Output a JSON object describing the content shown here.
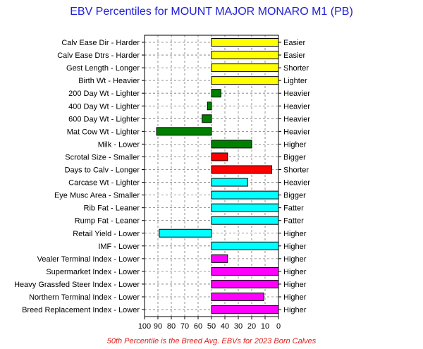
{
  "chart_data": {
    "type": "bar",
    "orientation": "horizontal",
    "title": "EBV Percentiles for MOUNT MAJOR MONARO M1 (PB)",
    "footnote": "50th Percentile is the Breed Avg. EBVs for 2023 Born Calves",
    "x_ticks": [
      "100",
      "90",
      "80",
      "70",
      "60",
      "50",
      "40",
      "30",
      "20",
      "10",
      "0"
    ],
    "xlim": [
      100,
      0
    ],
    "baseline": 50,
    "grid": true,
    "rows": [
      {
        "label": "Calv Ease Dir - Harder",
        "right_label": "Easier",
        "value": 0,
        "color": "#ffff00"
      },
      {
        "label": "Calv Ease Dtrs - Harder",
        "right_label": "Easier",
        "value": 0,
        "color": "#ffff00"
      },
      {
        "label": "Gest Length - Longer",
        "right_label": "Shorter",
        "value": 0,
        "color": "#ffff00"
      },
      {
        "label": "Birth Wt - Heavier",
        "right_label": "Lighter",
        "value": 0,
        "color": "#ffff00"
      },
      {
        "label": "200 Day Wt - Lighter",
        "right_label": "Heavier",
        "value": 43,
        "color": "#008000"
      },
      {
        "label": "400 Day Wt - Lighter",
        "right_label": "Heavier",
        "value": 53,
        "color": "#008000"
      },
      {
        "label": "600 Day Wt - Lighter",
        "right_label": "Heavier",
        "value": 57,
        "color": "#008000"
      },
      {
        "label": "Mat Cow Wt - Lighter",
        "right_label": "Heavier",
        "value": 91,
        "color": "#008000"
      },
      {
        "label": "Milk - Lower",
        "right_label": "Higher",
        "value": 20,
        "color": "#008000"
      },
      {
        "label": "Scrotal Size - Smaller",
        "right_label": "Bigger",
        "value": 38,
        "color": "#ff0000"
      },
      {
        "label": "Days to Calv - Longer",
        "right_label": "Shorter",
        "value": 5,
        "color": "#ff0000"
      },
      {
        "label": "Carcase Wt - Lighter",
        "right_label": "Heavier",
        "value": 23,
        "color": "#00ffff"
      },
      {
        "label": "Eye Musc Area - Smaller",
        "right_label": "Bigger",
        "value": 0,
        "color": "#00ffff"
      },
      {
        "label": "Rib Fat - Leaner",
        "right_label": "Fatter",
        "value": 0,
        "color": "#00ffff"
      },
      {
        "label": "Rump Fat - Leaner",
        "right_label": "Fatter",
        "value": 0,
        "color": "#00ffff"
      },
      {
        "label": "Retail Yield - Lower",
        "right_label": "Higher",
        "value": 89,
        "color": "#00ffff"
      },
      {
        "label": "IMF - Lower",
        "right_label": "Higher",
        "value": 0,
        "color": "#00ffff"
      },
      {
        "label": "Vealer Terminal Index - Lower",
        "right_label": "Higher",
        "value": 38,
        "color": "#ff00ff"
      },
      {
        "label": "Supermarket Index - Lower",
        "right_label": "Higher",
        "value": 0,
        "color": "#ff00ff"
      },
      {
        "label": "Heavy Grassfed Steer Index - Lower",
        "right_label": "Higher",
        "value": 0,
        "color": "#ff00ff"
      },
      {
        "label": "Northern Terminal Index - Lower",
        "right_label": "Higher",
        "value": 11,
        "color": "#ff00ff"
      },
      {
        "label": "Breed Replacement Index - Lower",
        "right_label": "Higher",
        "value": 0,
        "color": "#ff00ff"
      }
    ]
  }
}
